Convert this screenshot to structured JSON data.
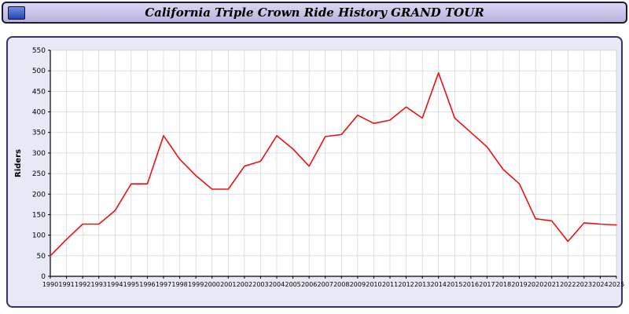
{
  "header": {
    "title": "California Triple Crown Ride History GRAND TOUR",
    "icon": "window-icon"
  },
  "chart_data": {
    "type": "line",
    "title": "California Triple Crown Ride History GRAND TOUR",
    "xlabel": "",
    "ylabel": "Riders",
    "ylim": [
      0,
      550
    ],
    "ytick_step": 50,
    "grid": true,
    "legend_position": "none",
    "line_color": "#ee1111",
    "grid_color": "#d8d8d8",
    "plot_bg": "#ffffff",
    "categories": [
      "1990",
      "1991",
      "1992",
      "1993",
      "1994",
      "1995",
      "1996",
      "1997",
      "1998",
      "1999",
      "2000",
      "2001",
      "2002",
      "2003",
      "2004",
      "2005",
      "2006",
      "2007",
      "2008",
      "2009",
      "2010",
      "2011",
      "2012",
      "2013",
      "2014",
      "2015",
      "2016",
      "2017",
      "2018",
      "2019",
      "2020",
      "2021",
      "2022",
      "2023",
      "2024",
      "2025"
    ],
    "values": [
      50,
      90,
      127,
      127,
      160,
      225,
      225,
      342,
      285,
      245,
      212,
      212,
      268,
      280,
      342,
      310,
      268,
      340,
      345,
      392,
      372,
      380,
      412,
      385,
      495,
      385,
      350,
      315,
      260,
      225,
      140,
      135,
      85,
      130,
      127,
      125
    ]
  }
}
